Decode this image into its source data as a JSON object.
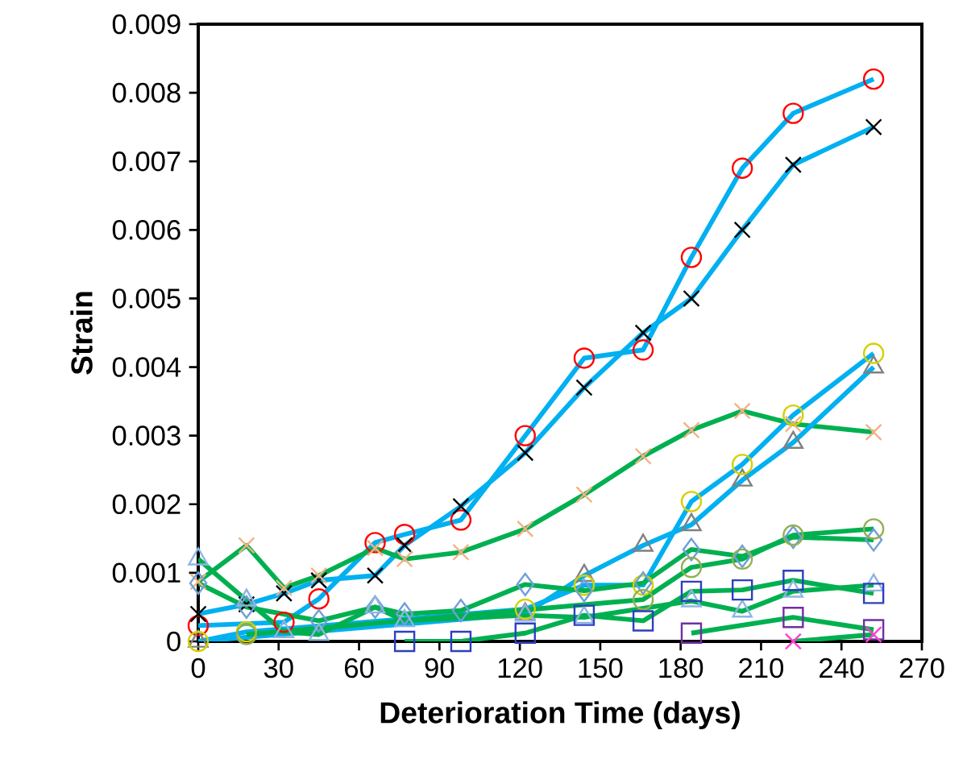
{
  "chart_data": {
    "type": "line",
    "xlabel": "Deterioration Time (days)",
    "ylabel": "Strain",
    "xlim": [
      0,
      270
    ],
    "xticks": [
      0,
      30,
      60,
      90,
      120,
      150,
      180,
      210,
      240,
      270
    ],
    "ylim": [
      0,
      0.009
    ],
    "yticks": [
      0,
      0.001,
      0.002,
      0.003,
      0.004,
      0.005,
      0.006,
      0.007,
      0.008,
      0.009
    ],
    "grid": false,
    "line_style": "solid",
    "series": [
      {
        "color": "#00b0f0",
        "marker": "circle",
        "colors": [
          "#ff0000",
          "#ff0000",
          "#ff0000",
          "#ff0000",
          "#ff0000",
          "#ff0000",
          "#ff0000",
          "#ff0000",
          "#ff0000",
          "#ff0000",
          "#ff0000",
          "#ff0000",
          "#ff0000"
        ],
        "x": [
          0,
          32,
          45,
          66,
          77,
          98,
          122,
          144,
          166,
          184,
          203,
          222,
          252
        ],
        "values": [
          0.00023,
          0.00028,
          0.00062,
          0.00144,
          0.00156,
          0.00177,
          0.003,
          0.00413,
          0.00425,
          0.0056,
          0.0069,
          0.0077,
          0.0082
        ]
      },
      {
        "color": "#00b0f0",
        "marker": "cross",
        "colors": [
          "#000000",
          "#000000",
          "#000000",
          "#000000",
          "#000000",
          "#000000",
          "#000000",
          "#000000",
          "#000000",
          "#000000",
          "#000000",
          "#000000",
          "#000000",
          "#000000"
        ],
        "x": [
          0,
          18,
          32,
          45,
          66,
          77,
          98,
          122,
          144,
          166,
          184,
          203,
          222,
          252
        ],
        "values": [
          0.0004,
          0.00054,
          0.0007,
          0.00089,
          0.00096,
          0.0014,
          0.00197,
          0.00275,
          0.0037,
          0.0045,
          0.005,
          0.006,
          0.00695,
          0.0075
        ]
      },
      {
        "color": "#00b050",
        "marker": "cross",
        "colors": [
          "#f4b183",
          "#f4b183",
          "#f4b183",
          "#f4b183",
          "#f4b183",
          "#f4b183",
          "#f4b183",
          "#f4b183",
          "#f4b183",
          "#f4b183",
          "#f4b183",
          "#f4b183",
          "#f4b183",
          "#f4b183"
        ],
        "x": [
          0,
          18,
          32,
          45,
          66,
          77,
          98,
          122,
          144,
          166,
          184,
          203,
          222,
          252
        ],
        "values": [
          0.00087,
          0.0014,
          0.00078,
          0.00096,
          0.00136,
          0.0012,
          0.0013,
          0.00164,
          0.00214,
          0.0027,
          0.00308,
          0.00336,
          0.00317,
          0.00305
        ]
      },
      {
        "color": "#00b0f0",
        "marker": "triangle",
        "colors": [
          "#808080",
          "#808080",
          "#808080",
          "#808080",
          "#808080",
          "#808080",
          "#808080",
          "#808080"
        ],
        "x": [
          0,
          122,
          144,
          166,
          184,
          203,
          222,
          252
        ],
        "values": [
          0,
          0.0004,
          0.00096,
          0.0014,
          0.0017,
          0.00235,
          0.0029,
          0.004
        ]
      },
      {
        "color": "#00b0f0",
        "marker": "circle",
        "colors": [
          "#d4d000",
          "#d4d000",
          "#d4d000",
          "#d4d000",
          "#d4d000",
          "#d4d000",
          "#d4d000",
          "#d4d000",
          "#d4d000"
        ],
        "x": [
          0,
          18,
          122,
          144,
          166,
          184,
          203,
          222,
          252
        ],
        "values": [
          0,
          0.00014,
          0.00047,
          0.00082,
          0.00082,
          0.00204,
          0.00258,
          0.0033,
          0.0042
        ]
      },
      {
        "color": "#00b050",
        "marker": "diamond",
        "colors": [
          "#6f9fd8",
          "#6f9fd8",
          "#6f9fd8",
          "#6f9fd8",
          "#6f9fd8",
          "#6f9fd8",
          "#6f9fd8",
          "#6f9fd8",
          "#6f9fd8",
          "#6f9fd8",
          "#6f9fd8",
          "#6f9fd8",
          "#6f9fd8"
        ],
        "x": [
          0,
          18,
          45,
          66,
          77,
          98,
          122,
          144,
          166,
          184,
          203,
          222,
          252
        ],
        "values": [
          0.00085,
          0.0005,
          0.0003,
          0.0005,
          0.0004,
          0.00045,
          0.00083,
          0.00074,
          0.00085,
          0.00134,
          0.00124,
          0.00152,
          0.00148
        ]
      },
      {
        "color": "#00b050",
        "marker": "circle",
        "colors": [
          "#92b050",
          "#92b050",
          "#92b050",
          "#92b050",
          "#92b050",
          "#92b050"
        ],
        "x": [
          18,
          166,
          184,
          203,
          222,
          252
        ],
        "values": [
          0.0001,
          0.00061,
          0.00108,
          0.0012,
          0.00155,
          0.00164
        ]
      },
      {
        "color": "#00b050",
        "marker": "triangle",
        "colors": [
          "#8eb4e3",
          "#8eb4e3",
          "#8eb4e3",
          "#8eb4e3",
          "#8eb4e3",
          "#8eb4e3",
          "#8eb4e3",
          "#8eb4e3",
          "#8eb4e3",
          "#8eb4e3",
          "#8eb4e3",
          "#8eb4e3"
        ],
        "x": [
          0,
          18,
          32,
          45,
          66,
          77,
          122,
          144,
          184,
          203,
          222,
          252
        ],
        "values": [
          0.0012,
          0.0006,
          0.00014,
          0.0001,
          0.0005,
          0.0003,
          0.00038,
          0.00035,
          0.00059,
          0.00044,
          0.00073,
          0.00082
        ]
      },
      {
        "color": "#00b050",
        "marker": "square",
        "colors": [
          "#2e3fbf",
          "#2e3fbf",
          "#2e3fbf",
          "#2e3fbf",
          "#2e3fbf",
          "#2e3fbf",
          "#2e3fbf",
          "#2e3fbf",
          "#2e3fbf"
        ],
        "x": [
          77,
          98,
          122,
          144,
          166,
          184,
          203,
          222,
          252
        ],
        "values": [
          0,
          0,
          0.00012,
          0.00038,
          0.0003,
          0.00073,
          0.00075,
          0.00089,
          0.0007
        ]
      },
      {
        "color": "#00b050",
        "marker": "square",
        "colors": [
          "#7030a0",
          "#7030a0",
          "#7030a0"
        ],
        "x": [
          184,
          222,
          252
        ],
        "values": [
          0.00012,
          0.00035,
          0.00017
        ]
      },
      {
        "color": "#00b050",
        "marker": "cross",
        "colors": [
          "#ff40d0",
          "#ff40d0"
        ],
        "x": [
          222,
          252
        ],
        "values": [
          0,
          0.0001
        ]
      }
    ]
  }
}
